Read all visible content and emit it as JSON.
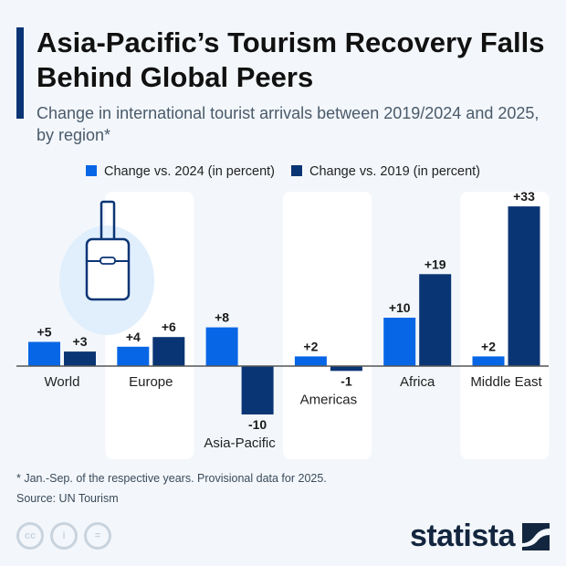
{
  "title": "Asia-Pacific’s Tourism Recovery Falls Behind Global Peers",
  "subtitle": "Change in international tourist arrivals between 2019/2024 and 2025, by region*",
  "footnote": "* Jan.-Sep. of the respective years. Provisional data for 2025.",
  "source": "Source: UN Tourism",
  "brand": "statista",
  "license_icons": [
    "cc",
    "by",
    "nd"
  ],
  "license_text": {
    "cc": "cc",
    "by": "i",
    "nd": "="
  },
  "colors": {
    "light": "#0766e6",
    "dark": "#0a3575",
    "panel": "#ffffff",
    "background": "#f3f7fb"
  },
  "chart_data": {
    "type": "bar",
    "categories": [
      "World",
      "Europe",
      "Asia-Pacific",
      "Americas",
      "Africa",
      "Middle East"
    ],
    "series": [
      {
        "name": "Change vs. 2024 (in percent)",
        "values": [
          5,
          4,
          8,
          2,
          10,
          2
        ],
        "labels": [
          "+5",
          "+4",
          "+8",
          "+2",
          "+10",
          "+2"
        ]
      },
      {
        "name": "Change vs. 2019 (in percent)",
        "values": [
          3,
          6,
          -10,
          -1,
          19,
          33
        ],
        "labels": [
          "+3",
          "+6",
          "-10",
          "-1",
          "+19",
          "+33"
        ]
      }
    ],
    "legend": "top",
    "grid": false
  }
}
